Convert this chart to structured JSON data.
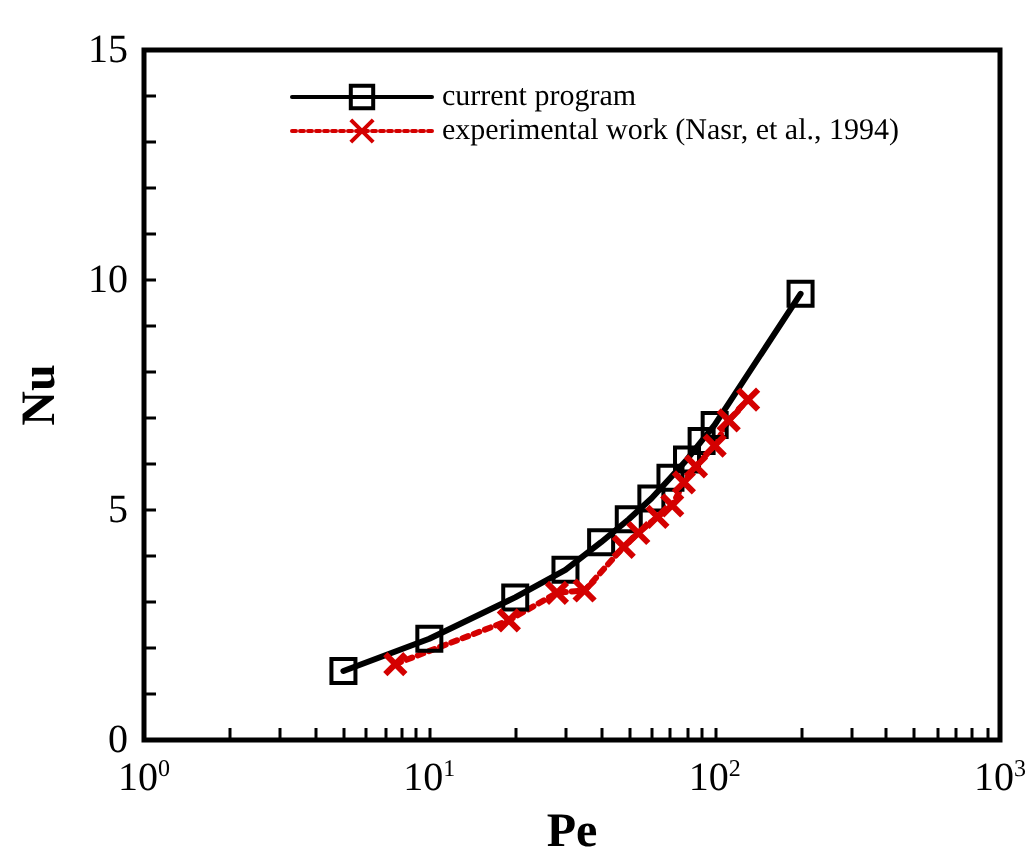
{
  "chart_data": {
    "type": "line",
    "xlabel": "Pe",
    "ylabel": "Nu",
    "log": "x",
    "xlim": [
      1,
      1000
    ],
    "ylim": [
      0,
      15
    ],
    "xticks": [
      {
        "value": 1,
        "label": "10$^{0}$"
      },
      {
        "value": 2,
        "label": null
      },
      {
        "value": 3,
        "label": null
      },
      {
        "value": 4,
        "label": null
      },
      {
        "value": 5,
        "label": null
      },
      {
        "value": 6,
        "label": null
      },
      {
        "value": 7,
        "label": null
      },
      {
        "value": 8,
        "label": null
      },
      {
        "value": 9,
        "label": null
      },
      {
        "value": 10,
        "label": "10$^{1}$"
      },
      {
        "value": 20,
        "label": null
      },
      {
        "value": 30,
        "label": null
      },
      {
        "value": 40,
        "label": null
      },
      {
        "value": 50,
        "label": null
      },
      {
        "value": 60,
        "label": null
      },
      {
        "value": 70,
        "label": null
      },
      {
        "value": 80,
        "label": null
      },
      {
        "value": 90,
        "label": null
      },
      {
        "value": 100,
        "label": "10$^{2}$"
      },
      {
        "value": 200,
        "label": null
      },
      {
        "value": 300,
        "label": null
      },
      {
        "value": 400,
        "label": null
      },
      {
        "value": 500,
        "label": null
      },
      {
        "value": 600,
        "label": null
      },
      {
        "value": 700,
        "label": null
      },
      {
        "value": 800,
        "label": null
      },
      {
        "value": 900,
        "label": null
      },
      {
        "value": 1000,
        "label": "10$^{3}$"
      }
    ],
    "yticks": [
      0,
      {
        "value": 1,
        "label": null
      },
      {
        "value": 2,
        "label": null
      },
      {
        "value": 3,
        "label": null
      },
      {
        "value": 4,
        "label": null
      },
      5,
      {
        "value": 6,
        "label": null
      },
      {
        "value": 7,
        "label": null
      },
      {
        "value": 8,
        "label": null
      },
      {
        "value": 9,
        "label": null
      },
      10,
      {
        "value": 11,
        "label": null
      },
      {
        "value": 12,
        "label": null
      },
      {
        "value": 13,
        "label": null
      },
      {
        "value": 14,
        "label": null
      },
      15
    ],
    "grid": false,
    "legend": "top",
    "series": [
      {
        "name": "current program",
        "color": "#000000",
        "marker": "square",
        "line_style": "solid",
        "x": [
          5,
          10,
          20,
          30,
          40,
          50,
          60,
          70,
          80,
          90,
          100,
          200
        ],
        "values": [
          1.5,
          2.2,
          3.1,
          3.7,
          4.3,
          4.8,
          5.25,
          5.7,
          6.1,
          6.5,
          6.85,
          9.7
        ]
      },
      {
        "name": "experimental work (Nasr, et al., 1994)",
        "color": "#d40000",
        "marker": "cross",
        "line_style": "dotted",
        "x": [
          7.6,
          19,
          28,
          35,
          48,
          54,
          63,
          71,
          78,
          86,
          100,
          112,
          131
        ],
        "values": [
          1.65,
          2.6,
          3.2,
          3.25,
          4.2,
          4.5,
          4.85,
          5.1,
          5.6,
          5.95,
          6.4,
          6.95,
          7.4
        ]
      }
    ]
  }
}
